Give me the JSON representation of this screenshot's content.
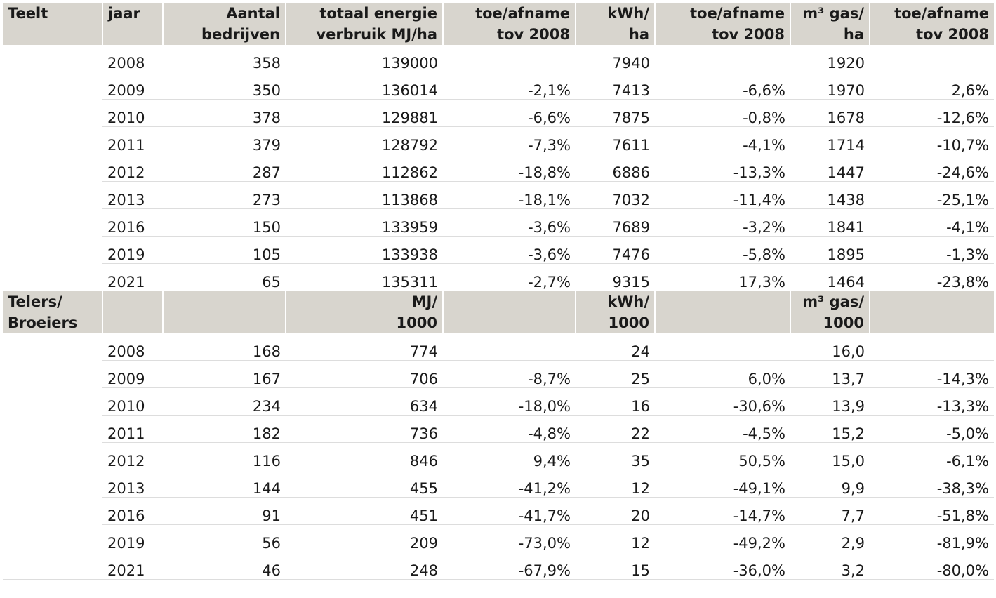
{
  "section1": {
    "header": {
      "teelt": "Teelt",
      "jaar": "jaar",
      "aantal_1": "Aantal",
      "aantal_2": "bedrijven",
      "energie_1": "totaal energie",
      "energie_2": "verbruik MJ/ha",
      "toe1_1": "toe/afname",
      "toe1_2": "tov 2008",
      "kwh_1": "kWh/",
      "kwh_2": "ha",
      "toe2_1": "toe/afname",
      "toe2_2": "tov 2008",
      "gas_1": "m³ gas/",
      "gas_2": "ha",
      "toe3_1": "toe/afname",
      "toe3_2": "tov 2008"
    },
    "rows": [
      [
        "2008",
        "358",
        "139000",
        "",
        "7940",
        "",
        "1920",
        ""
      ],
      [
        "2009",
        "350",
        "136014",
        "-2,1%",
        "7413",
        "-6,6%",
        "1970",
        "2,6%"
      ],
      [
        "2010",
        "378",
        "129881",
        "-6,6%",
        "7875",
        "-0,8%",
        "1678",
        "-12,6%"
      ],
      [
        "2011",
        "379",
        "128792",
        "-7,3%",
        "7611",
        "-4,1%",
        "1714",
        "-10,7%"
      ],
      [
        "2012",
        "287",
        "112862",
        "-18,8%",
        "6886",
        "-13,3%",
        "1447",
        "-24,6%"
      ],
      [
        "2013",
        "273",
        "113868",
        "-18,1%",
        "7032",
        "-11,4%",
        "1438",
        "-25,1%"
      ],
      [
        "2016",
        "150",
        "133959",
        "-3,6%",
        "7689",
        "-3,2%",
        "1841",
        "-4,1%"
      ],
      [
        "2019",
        "105",
        "133938",
        "-3,6%",
        "7476",
        "-5,8%",
        "1895",
        "-1,3%"
      ],
      [
        "2021",
        "65",
        "135311",
        "-2,7%",
        "9315",
        "17,3%",
        "1464",
        "-23,8%"
      ]
    ]
  },
  "section2": {
    "header": {
      "teelt_1": "Telers/",
      "teelt_2": "Broeiers",
      "mj_1": "MJ/",
      "mj_2": "1000",
      "kwh_1": "kWh/",
      "kwh_2": "1000",
      "gas_1": "m³ gas/",
      "gas_2": "1000"
    },
    "rows": [
      [
        "2008",
        "168",
        "774",
        "",
        "24",
        "",
        "16,0",
        ""
      ],
      [
        "2009",
        "167",
        "706",
        "-8,7%",
        "25",
        "6,0%",
        "13,7",
        "-14,3%"
      ],
      [
        "2010",
        "234",
        "634",
        "-18,0%",
        "16",
        "-30,6%",
        "13,9",
        "-13,3%"
      ],
      [
        "2011",
        "182",
        "736",
        "-4,8%",
        "22",
        "-4,5%",
        "15,2",
        "-5,0%"
      ],
      [
        "2012",
        "116",
        "846",
        "9,4%",
        "35",
        "50,5%",
        "15,0",
        "-6,1%"
      ],
      [
        "2013",
        "144",
        "455",
        "-41,2%",
        "12",
        "-49,1%",
        "9,9",
        "-38,3%"
      ],
      [
        "2016",
        "91",
        "451",
        "-41,7%",
        "20",
        "-14,7%",
        "7,7",
        "-51,8%"
      ],
      [
        "2019",
        "56",
        "209",
        "-73,0%",
        "12",
        "-49,2%",
        "2,9",
        "-81,9%"
      ],
      [
        "2021",
        "46",
        "248",
        "-67,9%",
        "15",
        "-36,0%",
        "3,2",
        "-80,0%"
      ]
    ]
  }
}
